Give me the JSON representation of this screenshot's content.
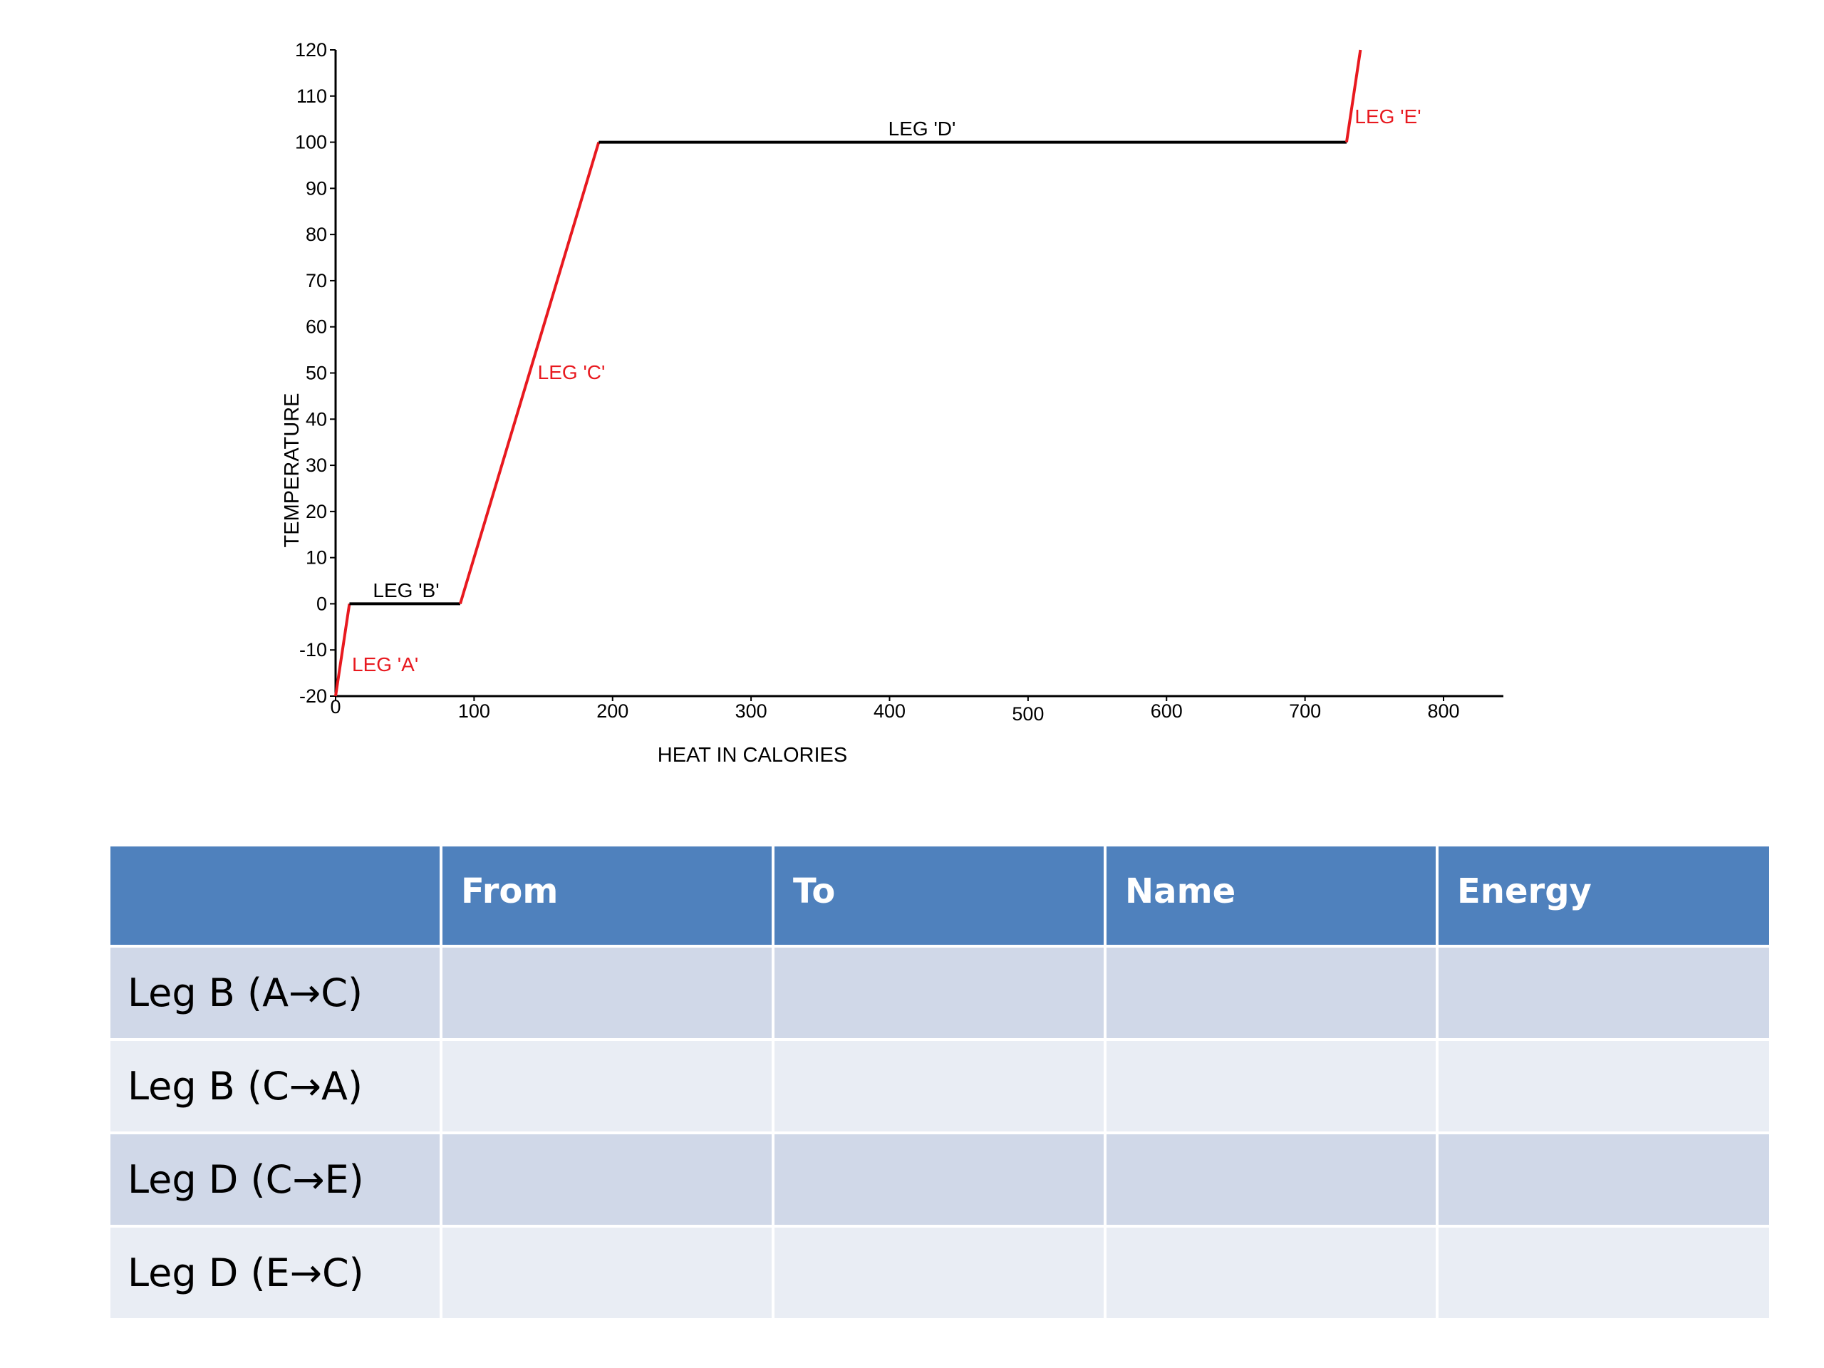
{
  "chart_data": {
    "type": "line",
    "xlabel": "HEAT IN CALORIES",
    "ylabel": "TEMPERATURE",
    "xlim": [
      0,
      850
    ],
    "ylim": [
      -20,
      120
    ],
    "x_ticks": [
      0,
      100,
      200,
      300,
      400,
      500,
      600,
      700,
      800
    ],
    "y_ticks": [
      -20,
      -10,
      0,
      10,
      20,
      30,
      40,
      50,
      60,
      70,
      80,
      90,
      100,
      110,
      120
    ],
    "grid": false,
    "segments": [
      {
        "label": "LEG 'A'",
        "color": "#e8191f",
        "points": [
          [
            0,
            -20
          ],
          [
            10,
            0
          ]
        ]
      },
      {
        "label": "LEG 'B'",
        "color": "#000000",
        "points": [
          [
            10,
            0
          ],
          [
            90,
            0
          ]
        ]
      },
      {
        "label": "LEG 'C'",
        "color": "#e8191f",
        "points": [
          [
            90,
            0
          ],
          [
            190,
            100
          ]
        ]
      },
      {
        "label": "LEG 'D'",
        "color": "#000000",
        "points": [
          [
            190,
            100
          ],
          [
            730,
            100
          ]
        ]
      },
      {
        "label": "LEG 'E'",
        "color": "#e8191f",
        "points": [
          [
            730,
            100
          ],
          [
            740,
            120
          ]
        ]
      }
    ]
  },
  "table": {
    "headers": [
      "",
      "From",
      "To",
      "Name",
      "Energy"
    ],
    "rows": [
      {
        "label": "Leg B (A→C)",
        "cells": [
          "",
          "",
          "",
          ""
        ]
      },
      {
        "label": "Leg B (C→A)",
        "cells": [
          "",
          "",
          "",
          ""
        ]
      },
      {
        "label": "Leg D (C→E)",
        "cells": [
          "",
          "",
          "",
          ""
        ]
      },
      {
        "label": "Leg D (E→C)",
        "cells": [
          "",
          "",
          "",
          ""
        ]
      }
    ]
  }
}
